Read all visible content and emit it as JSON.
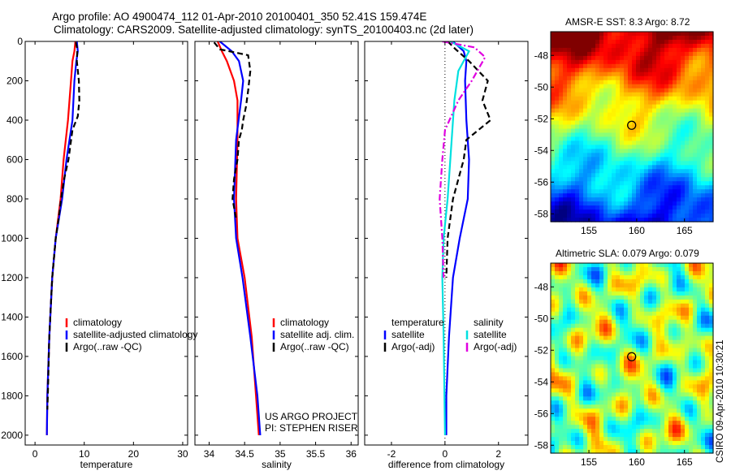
{
  "header": {
    "line1": "Argo profile: AO 4900474_112 01-Apr-2010 20100401_350 52.41S 159.474E",
    "line2": "Climatology: CARS2009. Satellite-adjusted climatology: synTS_20100403.nc (2d later)"
  },
  "credit": {
    "project": "US ARGO PROJECT",
    "pi": "PI: STEPHEN RISER",
    "stamp": "CSIRO 09-Apr-2010 10:30:21"
  },
  "colors": {
    "climatology": "#ff0000",
    "satellite": "#0000ff",
    "argo": "#000000",
    "satellite_salinity": "#00e0e0",
    "argo_adj_salinity": "#e000e0"
  },
  "chart_data": [
    {
      "type": "line",
      "id": "temperature",
      "xlabel": "temperature",
      "ylabel": "",
      "xlim": [
        -2,
        31
      ],
      "ylim": [
        2050,
        0
      ],
      "xticks": [
        0,
        10,
        20,
        30
      ],
      "yticks": [
        0,
        200,
        400,
        600,
        800,
        1000,
        1200,
        1400,
        1600,
        1800,
        2000
      ],
      "legend": [
        "climatology",
        "satellite-adjusted climatology",
        "Argo(..raw -QC)"
      ],
      "series": [
        {
          "name": "climatology",
          "color": "#ff0000",
          "dash": "solid",
          "x": [
            8.2,
            8.0,
            7.6,
            7.3,
            6.7,
            5.8,
            5.2,
            4.2,
            3.5,
            2.9,
            2.5,
            2.4
          ],
          "y": [
            0,
            50,
            100,
            200,
            400,
            600,
            800,
            1000,
            1200,
            1500,
            1800,
            2000
          ]
        },
        {
          "name": "satellite-adjusted climatology",
          "color": "#0000ff",
          "dash": "solid",
          "x": [
            8.5,
            8.7,
            8.4,
            8.0,
            7.6,
            6.4,
            5.5,
            4.2,
            3.5,
            2.9,
            2.5,
            2.4
          ],
          "y": [
            0,
            50,
            100,
            200,
            400,
            600,
            800,
            1000,
            1200,
            1500,
            1800,
            2000
          ]
        },
        {
          "name": "Argo(..raw -QC)",
          "color": "#000000",
          "dash": "dashed",
          "x": [
            8.3,
            8.6,
            8.5,
            8.9,
            9.0,
            8.7,
            7.6,
            6.8,
            5.9,
            5.3,
            4.8,
            4.2,
            3.5,
            2.9,
            2.6,
            2.5
          ],
          "y": [
            5,
            40,
            100,
            200,
            300,
            380,
            450,
            600,
            700,
            800,
            900,
            1000,
            1200,
            1500,
            1800,
            1870
          ]
        }
      ]
    },
    {
      "type": "line",
      "id": "salinity",
      "xlabel": "salinity",
      "ylabel": "",
      "xlim": [
        33.8,
        36.1
      ],
      "ylim": [
        2050,
        0
      ],
      "xticks": [
        34,
        34.5,
        35,
        35.5,
        36
      ],
      "legend": [
        "climatology",
        "satellite adj. clim.",
        "Argo(..raw -QC)"
      ],
      "series": [
        {
          "name": "climatology",
          "color": "#ff0000",
          "dash": "solid",
          "x": [
            34.12,
            34.18,
            34.25,
            34.35,
            34.4,
            34.4,
            34.38,
            34.4,
            34.5,
            34.6,
            34.66,
            34.7
          ],
          "y": [
            0,
            50,
            100,
            200,
            300,
            500,
            800,
            1000,
            1200,
            1500,
            1800,
            2000
          ]
        },
        {
          "name": "satellite adj. clim.",
          "color": "#0000ff",
          "dash": "solid",
          "x": [
            34.15,
            34.32,
            34.42,
            34.48,
            34.45,
            34.38,
            34.35,
            34.38,
            34.47,
            34.58,
            34.68,
            34.72
          ],
          "y": [
            0,
            50,
            100,
            200,
            300,
            500,
            800,
            1000,
            1200,
            1500,
            1800,
            2000
          ]
        },
        {
          "name": "Argo(..raw -QC)",
          "color": "#000000",
          "dash": "dashed",
          "x": [
            34.07,
            34.15,
            34.55,
            34.58,
            34.55,
            34.52,
            34.48,
            34.46,
            34.42,
            34.4,
            34.35,
            34.33,
            34.38
          ],
          "y": [
            5,
            40,
            70,
            150,
            250,
            330,
            400,
            450,
            500,
            600,
            700,
            800,
            900
          ]
        }
      ]
    },
    {
      "type": "line",
      "id": "difference",
      "xlabel": "difference from climatology",
      "ylabel": "",
      "xlim": [
        -3,
        3.1
      ],
      "ylim": [
        2050,
        0
      ],
      "xticks": [
        -2,
        0,
        2
      ],
      "legend_titles": [
        "temperature",
        "salinity"
      ],
      "legend": [
        "satellite",
        "Argo(-adj)",
        "satellite",
        "Argo(-adj)"
      ],
      "series": [
        {
          "name": "temperature satellite",
          "color": "#0000ff",
          "dash": "solid",
          "x": [
            0.3,
            0.7,
            0.8,
            0.75,
            0.8,
            0.9,
            0.85,
            0.55,
            0.3,
            0.15,
            0.05,
            0.05
          ],
          "y": [
            0,
            50,
            100,
            200,
            400,
            600,
            800,
            1000,
            1200,
            1500,
            1800,
            2000
          ]
        },
        {
          "name": "temperature Argo(-adj)",
          "color": "#000000",
          "dash": "dashed",
          "x": [
            0.1,
            0.4,
            0.9,
            1.6,
            1.4,
            1.7,
            0.8,
            0.7,
            0.5,
            0.3,
            0.1,
            0.05
          ],
          "y": [
            0,
            40,
            100,
            200,
            300,
            400,
            500,
            600,
            700,
            800,
            1000,
            1200
          ]
        },
        {
          "name": "salinity satellite",
          "color": "#00e0e0",
          "dash": "solid",
          "x": [
            0.2,
            0.9,
            0.5,
            0.35,
            0.25,
            0.1,
            -0.05,
            -0.1,
            -0.05,
            0.0
          ],
          "y": [
            0,
            50,
            150,
            300,
            500,
            800,
            1000,
            1200,
            1500,
            2000
          ]
        },
        {
          "name": "salinity Argo(-adj)",
          "color": "#e000e0",
          "dash": "dashdot",
          "x": [
            -0.1,
            1.1,
            1.5,
            1.0,
            0.5,
            0.0,
            -0.1,
            -0.2,
            -0.1,
            -0.05
          ],
          "y": [
            0,
            30,
            80,
            200,
            300,
            450,
            600,
            800,
            1000,
            1200
          ]
        }
      ]
    },
    {
      "type": "heatmap",
      "id": "sst",
      "title": "AMSR-E SST: 8.3 Argo: 8.72",
      "xlim": [
        151,
        168
      ],
      "ylim": [
        -58.5,
        -46.5
      ],
      "xticks": [
        155,
        160,
        165
      ],
      "yticks": [
        -48,
        -50,
        -52,
        -54,
        -56,
        -58
      ],
      "marker": {
        "lon": 159.474,
        "lat": -52.41
      },
      "colormap": "jet"
    },
    {
      "type": "heatmap",
      "id": "sla",
      "title": "Altimetric SLA: 0.079 Argo: 0.079",
      "xlim": [
        151,
        168
      ],
      "ylim": [
        -58.5,
        -46.5
      ],
      "xticks": [
        155,
        160,
        165
      ],
      "yticks": [
        -48,
        -50,
        -52,
        -54,
        -56,
        -58
      ],
      "marker": {
        "lon": 159.474,
        "lat": -52.41
      },
      "colormap": "jet"
    }
  ]
}
